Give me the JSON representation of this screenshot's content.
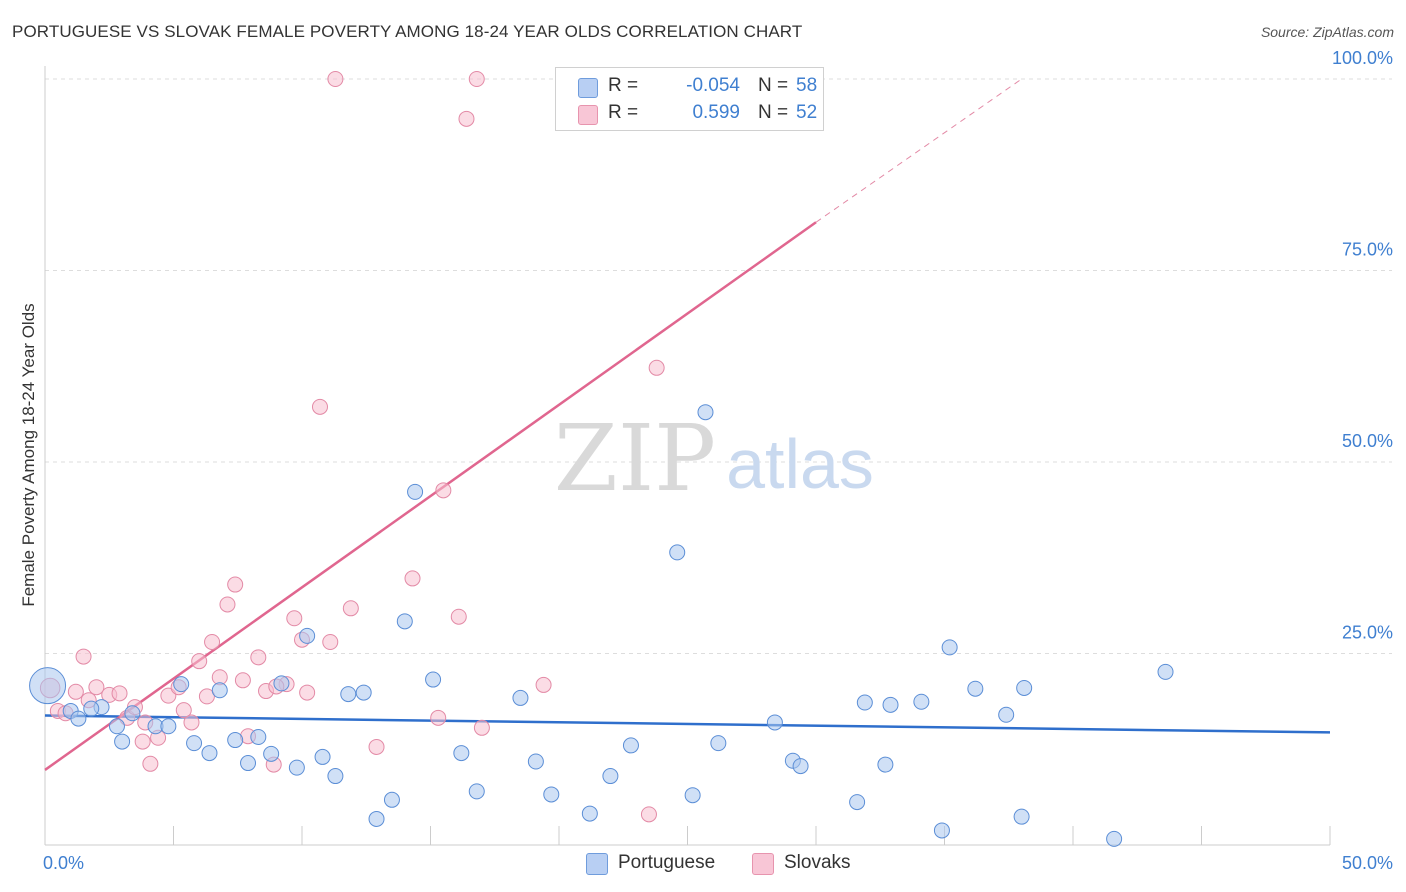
{
  "header": {
    "title": "PORTUGUESE VS SLOVAK FEMALE POVERTY AMONG 18-24 YEAR OLDS CORRELATION CHART",
    "source": "Source: ZipAtlas.com"
  },
  "legend": {
    "rows": [
      {
        "r_label": "R =",
        "r_value": "-0.054",
        "n_label": "N =",
        "n_value": "58"
      },
      {
        "r_label": "R =",
        "r_value": "0.599",
        "n_label": "N =",
        "n_value": "52"
      }
    ]
  },
  "bottom_legend": {
    "portuguese": "Portuguese",
    "slovaks": "Slovaks"
  },
  "watermark": {
    "zip": "ZIP",
    "atlas": "atlas"
  },
  "colors": {
    "portuguese_fill": "#a9c6ef",
    "portuguese_stroke": "#5b8ed6",
    "portuguese_line": "#2f6fcc",
    "slovaks_fill": "#f7bfd0",
    "slovaks_stroke": "#e38aa6",
    "slovaks_line": "#e0668f",
    "axis_text": "#3f7fd0",
    "grid": "#dddddd"
  },
  "chart_data": {
    "type": "scatter",
    "title": "PORTUGUESE VS SLOVAK FEMALE POVERTY AMONG 18-24 YEAR OLDS CORRELATION CHART",
    "xlabel": "",
    "ylabel": "Female Poverty Among 18-24 Year Olds",
    "xlim": [
      0,
      50
    ],
    "ylim": [
      0,
      100
    ],
    "x_tick_labels": [
      "0.0%",
      "50.0%"
    ],
    "y_tick_values": [
      25,
      50,
      75,
      100
    ],
    "y_tick_labels": [
      "25.0%",
      "50.0%",
      "75.0%",
      "100.0%"
    ],
    "grid": true,
    "legend_position": "top-center",
    "series": [
      {
        "name": "Portuguese",
        "r": -0.054,
        "n": 58,
        "trend": {
          "x0": 0,
          "y0": 16.9,
          "x1": 50,
          "y1": 14.7
        },
        "points": [
          [
            0.1,
            20.8,
            2.4
          ],
          [
            1.0,
            17.5,
            1
          ],
          [
            1.3,
            16.5,
            1
          ],
          [
            2.2,
            18.0,
            1
          ],
          [
            2.8,
            15.5,
            1
          ],
          [
            3.0,
            13.5,
            1
          ],
          [
            4.3,
            15.5,
            1
          ],
          [
            4.8,
            15.5,
            1
          ],
          [
            5.3,
            21.0,
            1
          ],
          [
            5.8,
            13.3,
            1
          ],
          [
            6.4,
            12.0,
            1
          ],
          [
            6.8,
            20.2,
            1
          ],
          [
            7.4,
            13.7,
            1
          ],
          [
            7.9,
            10.7,
            1
          ],
          [
            8.3,
            14.1,
            1
          ],
          [
            8.8,
            11.9,
            1
          ],
          [
            9.2,
            21.1,
            1
          ],
          [
            9.8,
            10.1,
            1
          ],
          [
            10.2,
            27.3,
            1
          ],
          [
            10.8,
            11.5,
            1
          ],
          [
            11.3,
            9.0,
            1
          ],
          [
            11.8,
            19.7,
            1
          ],
          [
            12.4,
            19.9,
            1
          ],
          [
            12.9,
            3.4,
            1
          ],
          [
            13.5,
            5.9,
            1
          ],
          [
            14.0,
            29.2,
            1
          ],
          [
            14.4,
            46.1,
            1
          ],
          [
            15.1,
            21.6,
            1
          ],
          [
            16.2,
            12.0,
            1
          ],
          [
            16.8,
            7.0,
            1
          ],
          [
            18.5,
            19.2,
            1
          ],
          [
            19.1,
            10.9,
            1
          ],
          [
            19.7,
            6.6,
            1
          ],
          [
            21.2,
            4.1,
            1
          ],
          [
            22.0,
            9.0,
            1
          ],
          [
            22.8,
            13.0,
            1
          ],
          [
            24.6,
            38.2,
            1
          ],
          [
            25.2,
            6.5,
            1
          ],
          [
            25.7,
            56.5,
            1
          ],
          [
            26.2,
            13.3,
            1
          ],
          [
            28.4,
            16.0,
            1
          ],
          [
            29.1,
            11.0,
            1
          ],
          [
            29.4,
            10.3,
            1
          ],
          [
            31.6,
            5.6,
            1
          ],
          [
            31.9,
            18.6,
            1
          ],
          [
            32.7,
            10.5,
            1
          ],
          [
            32.9,
            18.3,
            1
          ],
          [
            34.1,
            18.7,
            1
          ],
          [
            34.9,
            1.9,
            1
          ],
          [
            35.2,
            25.8,
            1
          ],
          [
            36.2,
            20.4,
            1
          ],
          [
            37.4,
            17.0,
            1
          ],
          [
            38.0,
            3.7,
            1
          ],
          [
            38.1,
            20.5,
            1
          ],
          [
            41.6,
            0.8,
            1
          ],
          [
            43.6,
            22.6,
            1
          ],
          [
            1.8,
            17.8,
            1
          ],
          [
            3.4,
            17.2,
            1
          ]
        ]
      },
      {
        "name": "Slovaks",
        "r": 0.599,
        "n": 52,
        "trend": {
          "x0": 0,
          "y0": 9.8,
          "x1": 30,
          "y1": 81.3
        },
        "trend_dashed": {
          "x0": 30,
          "y0": 81.3,
          "x1": 38,
          "y1": 100.0
        },
        "points": [
          [
            0.2,
            20.5,
            1.3
          ],
          [
            0.5,
            17.5,
            1
          ],
          [
            0.8,
            17.2,
            1
          ],
          [
            1.2,
            20.0,
            1
          ],
          [
            1.5,
            24.6,
            1
          ],
          [
            1.7,
            18.9,
            1
          ],
          [
            2.0,
            20.6,
            1
          ],
          [
            2.5,
            19.6,
            1
          ],
          [
            2.9,
            19.8,
            1
          ],
          [
            3.2,
            16.6,
            1
          ],
          [
            3.5,
            18.0,
            1
          ],
          [
            3.8,
            13.5,
            1
          ],
          [
            4.1,
            10.6,
            1
          ],
          [
            4.4,
            14.0,
            1
          ],
          [
            4.8,
            19.5,
            1
          ],
          [
            5.2,
            20.6,
            1
          ],
          [
            5.4,
            17.6,
            1
          ],
          [
            5.7,
            16.0,
            1
          ],
          [
            6.0,
            24.0,
            1
          ],
          [
            6.3,
            19.4,
            1
          ],
          [
            6.5,
            26.5,
            1
          ],
          [
            6.8,
            21.9,
            1
          ],
          [
            7.1,
            31.4,
            1
          ],
          [
            7.4,
            34.0,
            1
          ],
          [
            7.7,
            21.5,
            1
          ],
          [
            7.9,
            14.2,
            1
          ],
          [
            8.3,
            24.5,
            1
          ],
          [
            8.6,
            20.1,
            1
          ],
          [
            8.9,
            10.5,
            1
          ],
          [
            9.4,
            21.0,
            1
          ],
          [
            9.7,
            29.6,
            1
          ],
          [
            10.0,
            26.8,
            1
          ],
          [
            10.2,
            19.9,
            1
          ],
          [
            10.7,
            57.2,
            1
          ],
          [
            11.1,
            26.5,
            1
          ],
          [
            11.3,
            100.0,
            1
          ],
          [
            11.9,
            30.9,
            1
          ],
          [
            12.9,
            12.8,
            1
          ],
          [
            14.3,
            34.8,
            1
          ],
          [
            15.3,
            16.6,
            1
          ],
          [
            15.5,
            46.3,
            1
          ],
          [
            16.1,
            29.8,
            1
          ],
          [
            16.4,
            94.8,
            1
          ],
          [
            16.8,
            100.0,
            1
          ],
          [
            17.0,
            15.3,
            1
          ],
          [
            19.4,
            20.9,
            1
          ],
          [
            23.5,
            4.0,
            1
          ],
          [
            23.8,
            62.3,
            1
          ],
          [
            24.0,
            100.0,
            1
          ],
          [
            26.1,
            100.0,
            1
          ],
          [
            3.9,
            16.0,
            1
          ],
          [
            9.0,
            20.7,
            1
          ]
        ]
      }
    ]
  }
}
